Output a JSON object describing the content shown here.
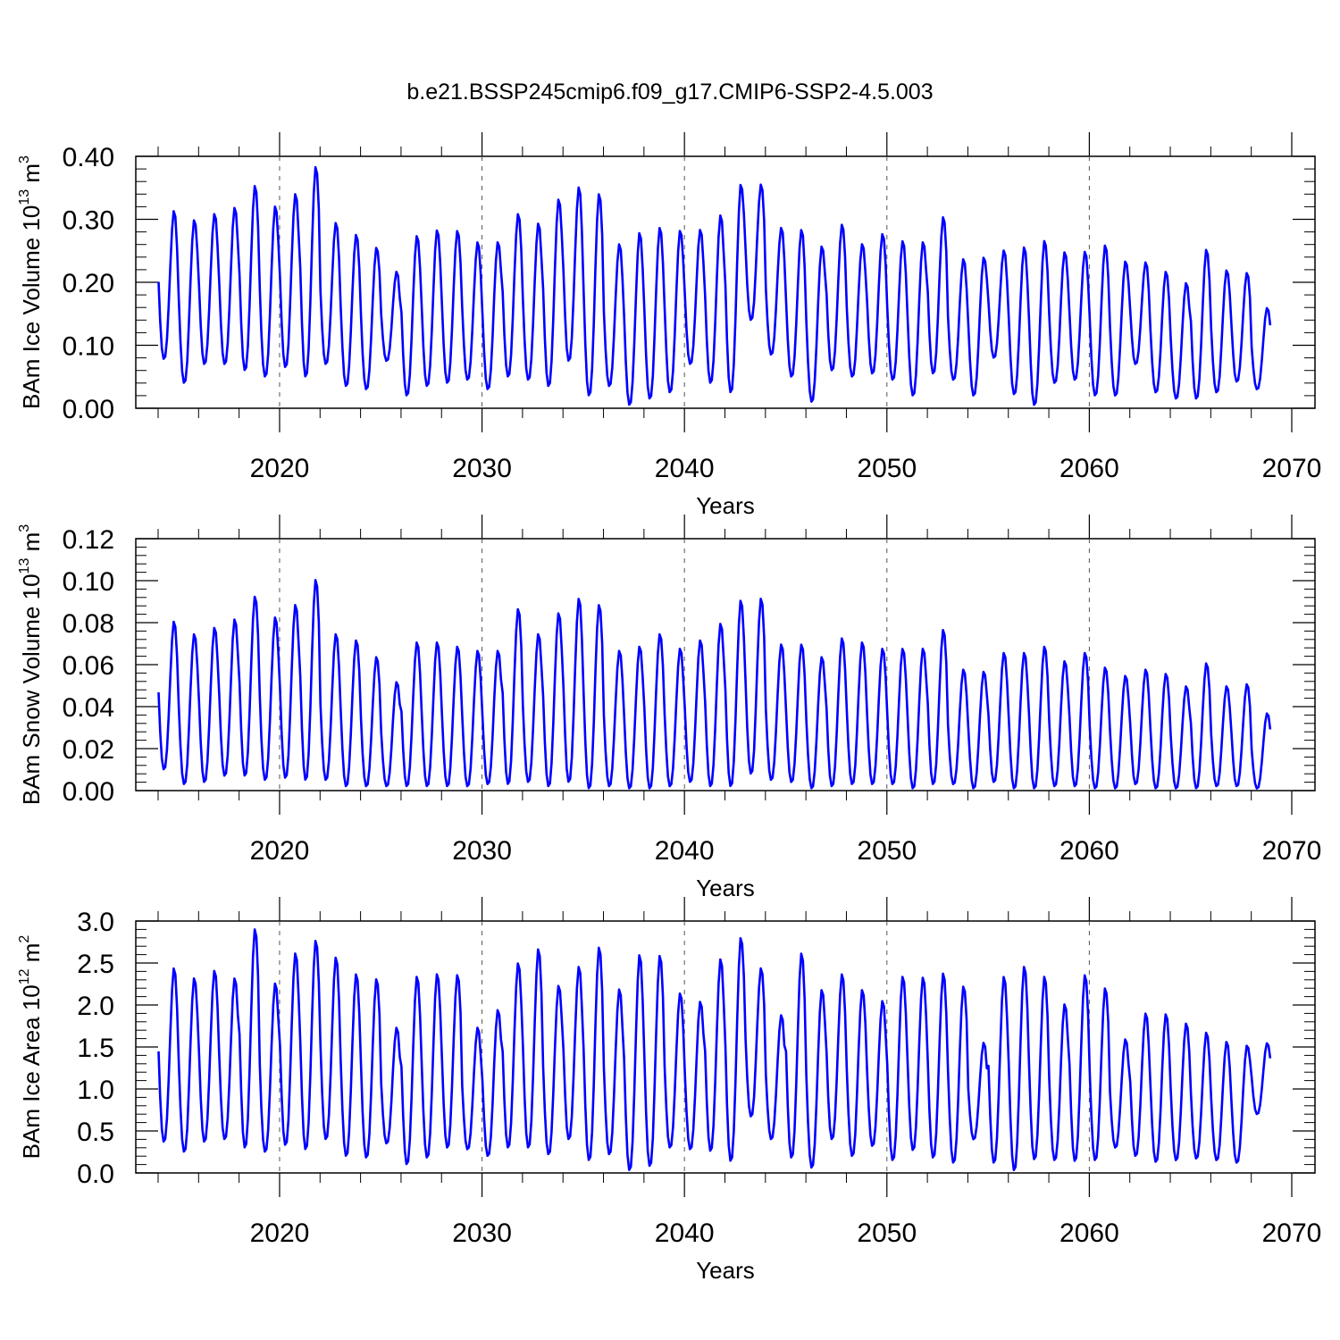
{
  "title": "b.e21.BSSP245cmip6.f09_g17.CMIP6-SSP2-4.5.003",
  "series_color": "#0000ff",
  "chart_data": [
    {
      "type": "line",
      "ylabel": {
        "text": "BAm Ice Volume 10",
        "sup": "13",
        "unit": " m",
        "unit_sup": "3"
      },
      "xlabel": "Years",
      "xlim": [
        2014,
        2070
      ],
      "ylim": [
        0,
        0.4
      ],
      "xticks": [
        2020,
        2030,
        2040,
        2050,
        2060,
        2070
      ],
      "xtick_labels": [
        "2020",
        "2030",
        "2040",
        "2050",
        "2060",
        "2070"
      ],
      "yticks": [
        0,
        0.1,
        0.2,
        0.3,
        0.4
      ],
      "ytick_labels": [
        "0.00",
        "0.10",
        "0.20",
        "0.30",
        "0.40"
      ],
      "grid": "vertical dashed at major x ticks",
      "annual_max": [
        0.315,
        0.3,
        0.31,
        0.32,
        0.355,
        0.322,
        0.342,
        0.385,
        0.296,
        0.277,
        0.256,
        0.218,
        0.275,
        0.284,
        0.283,
        0.265,
        0.265,
        0.31,
        0.295,
        0.333,
        0.353,
        0.342,
        0.262,
        0.28,
        0.288,
        0.283,
        0.285,
        0.308,
        0.356,
        0.357,
        0.288,
        0.285,
        0.258,
        0.293,
        0.262,
        0.278,
        0.267,
        0.265,
        0.305,
        0.238,
        0.24,
        0.252,
        0.257,
        0.267,
        0.249,
        0.25,
        0.26,
        0.234,
        0.233,
        0.218,
        0.2,
        0.253,
        0.22,
        0.216,
        0.16
      ],
      "annual_min": [
        0.078,
        0.04,
        0.07,
        0.07,
        0.06,
        0.05,
        0.065,
        0.05,
        0.07,
        0.035,
        0.03,
        0.075,
        0.02,
        0.035,
        0.04,
        0.045,
        0.03,
        0.05,
        0.045,
        0.035,
        0.075,
        0.02,
        0.035,
        0.005,
        0.015,
        0.025,
        0.07,
        0.04,
        0.025,
        0.14,
        0.085,
        0.05,
        0.01,
        0.06,
        0.05,
        0.055,
        0.045,
        0.02,
        0.055,
        0.045,
        0.02,
        0.08,
        0.022,
        0.005,
        0.04,
        0.045,
        0.02,
        0.02,
        0.07,
        0.025,
        0.015,
        0.015,
        0.025,
        0.042,
        0.03
      ]
    },
    {
      "type": "line",
      "ylabel": {
        "text": "BAm Snow Volume 10",
        "sup": "13",
        "unit": " m",
        "unit_sup": "3"
      },
      "xlabel": "Years",
      "xlim": [
        2014,
        2070
      ],
      "ylim": [
        0,
        0.12
      ],
      "xticks": [
        2020,
        2030,
        2040,
        2050,
        2060,
        2070
      ],
      "xtick_labels": [
        "2020",
        "2030",
        "2040",
        "2050",
        "2060",
        "2070"
      ],
      "yticks": [
        0,
        0.02,
        0.04,
        0.06,
        0.08,
        0.1,
        0.12
      ],
      "ytick_labels": [
        "0.00",
        "0.02",
        "0.04",
        "0.06",
        "0.08",
        "0.10",
        "0.12"
      ],
      "grid": "vertical dashed at major x ticks",
      "annual_max": [
        0.081,
        0.075,
        0.078,
        0.082,
        0.093,
        0.083,
        0.089,
        0.101,
        0.075,
        0.072,
        0.064,
        0.052,
        0.071,
        0.071,
        0.069,
        0.067,
        0.067,
        0.087,
        0.075,
        0.085,
        0.092,
        0.089,
        0.067,
        0.069,
        0.075,
        0.068,
        0.072,
        0.08,
        0.091,
        0.092,
        0.07,
        0.07,
        0.064,
        0.073,
        0.071,
        0.068,
        0.068,
        0.068,
        0.077,
        0.058,
        0.057,
        0.066,
        0.066,
        0.069,
        0.062,
        0.066,
        0.059,
        0.055,
        0.058,
        0.056,
        0.05,
        0.061,
        0.05,
        0.051,
        0.037
      ],
      "annual_min": [
        0.01,
        0.003,
        0.004,
        0.007,
        0.007,
        0.005,
        0.006,
        0.005,
        0.005,
        0.002,
        0.002,
        0.002,
        0.002,
        0.002,
        0.002,
        0.002,
        0.003,
        0.003,
        0.004,
        0.002,
        0.004,
        0.001,
        0.002,
        0.001,
        0.001,
        0.002,
        0.004,
        0.002,
        0.002,
        0.008,
        0.005,
        0.004,
        0.001,
        0.002,
        0.003,
        0.003,
        0.003,
        0.001,
        0.003,
        0.003,
        0.001,
        0.004,
        0.001,
        0.001,
        0.002,
        0.002,
        0.001,
        0.001,
        0.003,
        0.001,
        0.001,
        0.001,
        0.002,
        0.002,
        0.001
      ]
    },
    {
      "type": "line",
      "ylabel": {
        "text": "BAm Ice Area 10",
        "sup": "12",
        "unit": " m",
        "unit_sup": "2"
      },
      "xlabel": "Years",
      "xlim": [
        2014,
        2070
      ],
      "ylim": [
        0,
        3.0
      ],
      "xticks": [
        2020,
        2030,
        2040,
        2050,
        2060,
        2070
      ],
      "xtick_labels": [
        "2020",
        "2030",
        "2040",
        "2050",
        "2060",
        "2070"
      ],
      "yticks": [
        0,
        0.5,
        1.0,
        1.5,
        2.0,
        2.5,
        3.0
      ],
      "ytick_labels": [
        "0.0",
        "0.5",
        "1.0",
        "1.5",
        "2.0",
        "2.5",
        "3.0"
      ],
      "grid": "vertical dashed at major x ticks",
      "annual_max": [
        2.45,
        2.33,
        2.42,
        2.33,
        2.92,
        2.27,
        2.63,
        2.78,
        2.58,
        2.38,
        2.32,
        1.74,
        2.35,
        2.38,
        2.37,
        1.74,
        1.95,
        2.51,
        2.68,
        2.24,
        2.47,
        2.7,
        2.2,
        2.61,
        2.6,
        2.15,
        2.05,
        2.56,
        2.81,
        2.45,
        1.89,
        2.63,
        2.19,
        2.38,
        2.19,
        2.06,
        2.35,
        2.34,
        2.39,
        2.23,
        1.56,
        2.35,
        2.47,
        2.35,
        2.02,
        2.37,
        2.21,
        1.6,
        1.91,
        1.9,
        1.79,
        1.68,
        1.57,
        1.52,
        1.55
      ],
      "annual_min": [
        0.37,
        0.25,
        0.37,
        0.4,
        0.3,
        0.25,
        0.33,
        0.28,
        0.4,
        0.2,
        0.18,
        0.35,
        0.1,
        0.18,
        0.3,
        0.28,
        0.2,
        0.3,
        0.3,
        0.22,
        0.4,
        0.15,
        0.22,
        0.03,
        0.08,
        0.3,
        0.28,
        0.26,
        0.14,
        0.67,
        0.4,
        0.18,
        0.06,
        0.4,
        0.2,
        0.32,
        0.15,
        0.27,
        0.18,
        0.12,
        0.4,
        0.12,
        0.03,
        0.16,
        0.15,
        0.14,
        0.15,
        0.3,
        0.2,
        0.13,
        0.15,
        0.17,
        0.15,
        0.12,
        0.7
      ]
    }
  ]
}
